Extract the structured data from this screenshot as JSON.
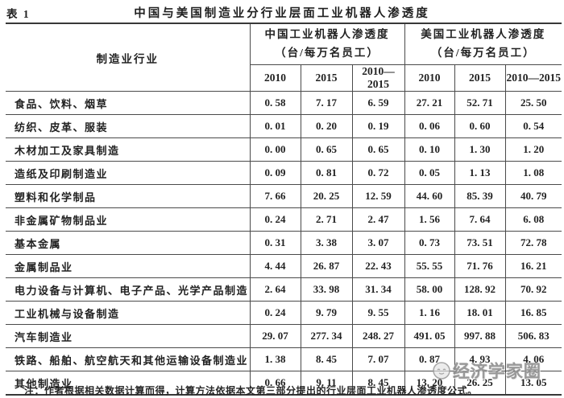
{
  "table_label": "表 1",
  "title": "中国与美国制造业分行业层面工业机器人渗透度",
  "header": {
    "industry_col": "制造业行业",
    "groups": [
      {
        "line1": "中国工业机器人渗透度",
        "line2": "（台/每万名员工）"
      },
      {
        "line1": "美国工业机器人渗透度",
        "line2": "（台/每万名员工）"
      }
    ],
    "year_cols": [
      "2010",
      "2015",
      "2010—2015",
      "2010",
      "2015",
      "2010—2015"
    ]
  },
  "rows": [
    {
      "industry": "食品、饮料、烟草",
      "values": [
        "0. 58",
        "7. 17",
        "6. 59",
        "27. 21",
        "52. 71",
        "25. 50"
      ]
    },
    {
      "industry": "纺织、皮革、服装",
      "values": [
        "0. 01",
        "0. 20",
        "0. 19",
        "0. 06",
        "0. 60",
        "0. 54"
      ]
    },
    {
      "industry": "木材加工及家具制造",
      "values": [
        "0. 00",
        "0. 65",
        "0. 65",
        "0. 10",
        "1. 30",
        "1. 20"
      ]
    },
    {
      "industry": "造纸及印刷制造业",
      "values": [
        "0. 09",
        "0. 81",
        "0. 72",
        "0. 05",
        "1. 13",
        "1. 08"
      ]
    },
    {
      "industry": "塑料和化学制品",
      "values": [
        "7. 66",
        "20. 25",
        "12. 59",
        "44. 60",
        "85. 39",
        "40. 79"
      ]
    },
    {
      "industry": "非金属矿物制品业",
      "values": [
        "0. 24",
        "2. 71",
        "2. 47",
        "1. 56",
        "7. 64",
        "6. 08"
      ]
    },
    {
      "industry": "基本金属",
      "values": [
        "0. 31",
        "3. 38",
        "3. 07",
        "0. 73",
        "73. 51",
        "72. 78"
      ]
    },
    {
      "industry": "金属制品业",
      "values": [
        "4. 44",
        "26. 87",
        "22. 43",
        "55. 55",
        "71. 76",
        "16. 21"
      ]
    },
    {
      "industry": "电力设备与计算机、电子产品、光学产品制造",
      "values": [
        "2. 64",
        "33. 98",
        "31. 34",
        "58. 00",
        "128. 92",
        "70. 92"
      ]
    },
    {
      "industry": "工业机械与设备制造",
      "values": [
        "0. 24",
        "9. 79",
        "9. 55",
        "1. 16",
        "18. 01",
        "16. 85"
      ]
    },
    {
      "industry": "汽车制造业",
      "values": [
        "29. 07",
        "277. 34",
        "248. 27",
        "491. 05",
        "997. 88",
        "506. 83"
      ]
    },
    {
      "industry": "铁路、船舶、航空航天和其他运输设备制造业",
      "values": [
        "1. 38",
        "8. 45",
        "7. 07",
        "0. 87",
        "4. 93",
        "4. 06"
      ]
    },
    {
      "industry": "其他制造业",
      "values": [
        "0. 66",
        "9. 11",
        "8. 45",
        "13. 20",
        "26. 25",
        "13. 05"
      ]
    }
  ],
  "note": "注：作者根据相关数据计算而得，计算方法依据本文第三部分提出的行业层面工业机器人渗透度公式。",
  "watermark": {
    "text": "经济学家圈",
    "logo": "cartoon-face",
    "color": "#8c8c8c"
  },
  "colors": {
    "rule_thick": "#383838",
    "rule_thin": "#4a4a4a",
    "text": "#1f1f1f",
    "background": "#ffffff"
  }
}
